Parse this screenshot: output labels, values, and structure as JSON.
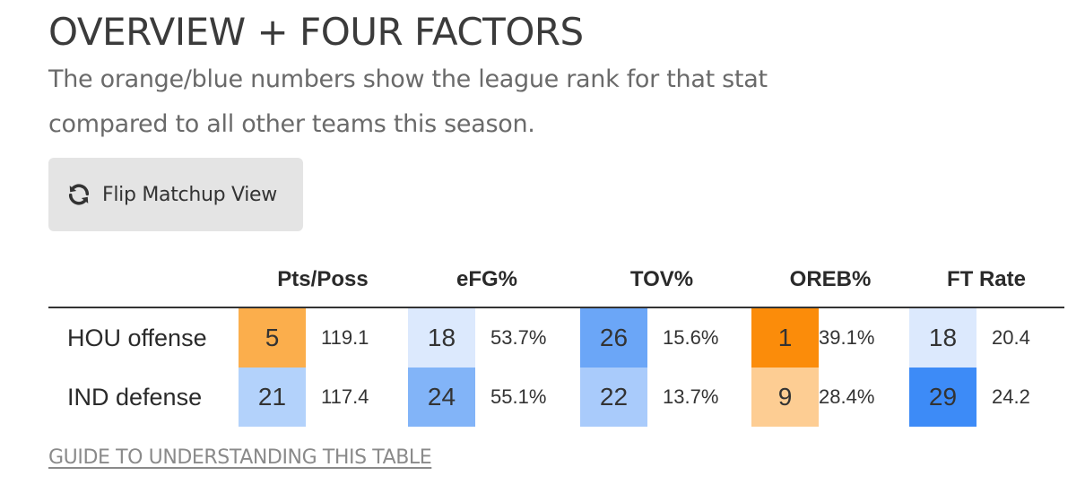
{
  "header": {
    "title": "OVERVIEW + FOUR FACTORS",
    "subtitle": "The orange/blue numbers show the league rank for that stat compared to all other teams this season."
  },
  "flip_button": {
    "label": "Flip Matchup View",
    "icon": "refresh-icon"
  },
  "table": {
    "columns": [
      "Pts/Poss",
      "eFG%",
      "TOV%",
      "OREB%",
      "FT Rate"
    ],
    "rows": [
      {
        "label": "HOU offense",
        "cells": [
          {
            "rank": "5",
            "value": "119.1",
            "color": "#fbae4c"
          },
          {
            "rank": "18",
            "value": "53.7%",
            "color": "#dce9fd"
          },
          {
            "rank": "26",
            "value": "15.6%",
            "color": "#6ba6f7"
          },
          {
            "rank": "1",
            "value": "39.1%",
            "color": "#fb8c0a"
          },
          {
            "rank": "18",
            "value": "20.4",
            "color": "#dce9fd"
          }
        ]
      },
      {
        "label": "IND defense",
        "cells": [
          {
            "rank": "21",
            "value": "117.4",
            "color": "#b3d2fb"
          },
          {
            "rank": "24",
            "value": "55.1%",
            "color": "#82b4f8"
          },
          {
            "rank": "22",
            "value": "13.7%",
            "color": "#a9cbfb"
          },
          {
            "rank": "9",
            "value": "28.4%",
            "color": "#fdcd93"
          },
          {
            "rank": "29",
            "value": "24.2",
            "color": "#3d8bf7"
          }
        ]
      }
    ]
  },
  "guide_link": {
    "label": "GUIDE TO UNDERSTANDING THIS TABLE"
  }
}
